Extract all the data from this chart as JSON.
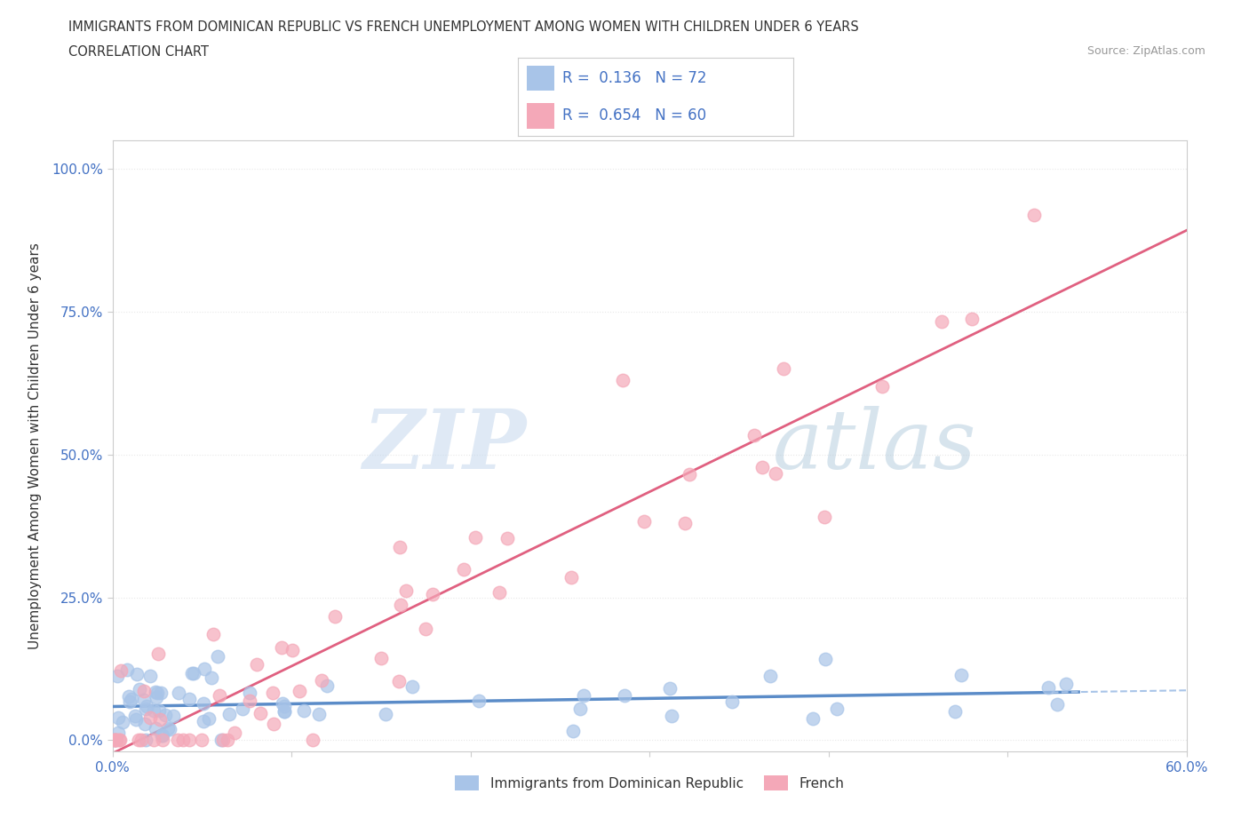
{
  "title": "IMMIGRANTS FROM DOMINICAN REPUBLIC VS FRENCH UNEMPLOYMENT AMONG WOMEN WITH CHILDREN UNDER 6 YEARS",
  "subtitle": "CORRELATION CHART",
  "source": "Source: ZipAtlas.com",
  "ylabel": "Unemployment Among Women with Children Under 6 years",
  "xlim": [
    0.0,
    0.6
  ],
  "ylim": [
    -0.02,
    1.05
  ],
  "xticks": [
    0.0,
    0.1,
    0.2,
    0.3,
    0.4,
    0.5,
    0.6
  ],
  "xticklabels": [
    "0.0%",
    "",
    "",
    "",
    "",
    "",
    "60.0%"
  ],
  "yticks": [
    0.0,
    0.25,
    0.5,
    0.75,
    1.0
  ],
  "yticklabels": [
    "0.0%",
    "25.0%",
    "50.0%",
    "75.0%",
    "100.0%"
  ],
  "series1_name": "Immigrants from Dominican Republic",
  "series1_color": "#a8c4e8",
  "series1_line_color": "#5b8cc8",
  "series2_name": "French",
  "series2_color": "#f4a8b8",
  "series2_line_color": "#e06080",
  "series1_R": 0.136,
  "series1_N": 72,
  "series2_R": 0.654,
  "series2_N": 60,
  "legend_text_color": "#4472c4",
  "watermark_zip": "ZIP",
  "watermark_atlas": "atlas",
  "background_color": "#ffffff",
  "grid_color": "#e8e8e8",
  "tick_color": "#4472c4",
  "axis_color": "#cccccc",
  "title_color": "#333333",
  "source_color": "#999999"
}
